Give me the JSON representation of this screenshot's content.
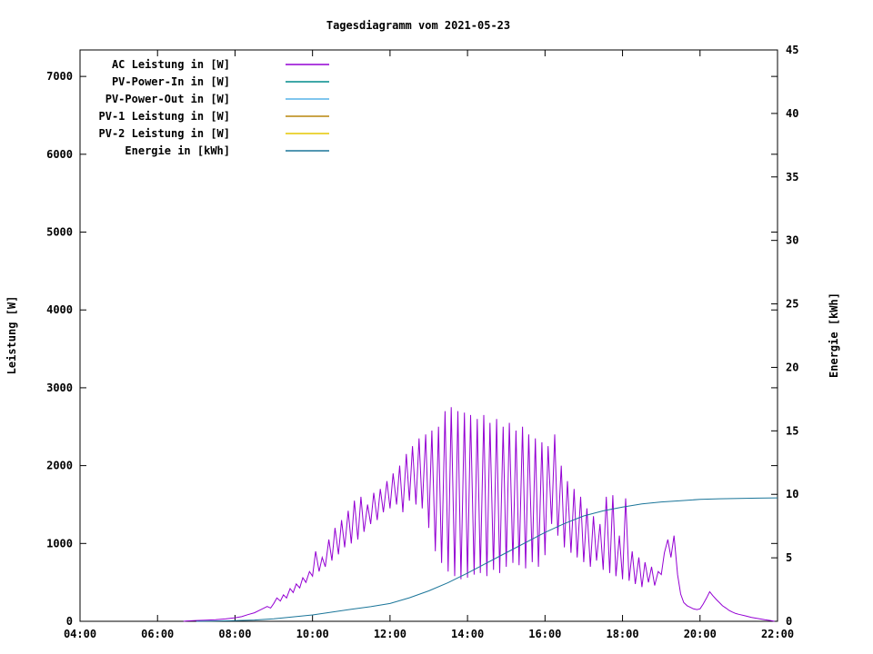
{
  "title": "Tagesdiagramm vom 2021-05-23",
  "axes": {
    "x": {
      "tick_labels": [
        "04:00",
        "06:00",
        "08:00",
        "10:00",
        "12:00",
        "14:00",
        "16:00",
        "18:00",
        "20:00",
        "22:00"
      ],
      "tick_hours": [
        4,
        6,
        8,
        10,
        12,
        14,
        16,
        18,
        20,
        22
      ],
      "range_hours": [
        4,
        22
      ]
    },
    "y_left": {
      "label": "Leistung [W]",
      "tick_values": [
        0,
        1000,
        2000,
        3000,
        4000,
        5000,
        6000,
        7000
      ],
      "tick_labels": [
        "0",
        "1000",
        "2000",
        "3000",
        "4000",
        "5000",
        "6000",
        "7000"
      ],
      "range": [
        0,
        7340
      ]
    },
    "y_right": {
      "label": "Energie [kWh]",
      "tick_values": [
        0,
        5,
        10,
        15,
        20,
        25,
        30,
        35,
        40,
        45
      ],
      "tick_labels": [
        "0",
        "5",
        "10",
        "15",
        "20",
        "25",
        "30",
        "35",
        "40",
        "45"
      ],
      "range": [
        0,
        45
      ]
    }
  },
  "legend": [
    {
      "label": "AC Leistung in [W]",
      "color": "#9400d3"
    },
    {
      "label": "PV-Power-In in [W]",
      "color": "#008b8b"
    },
    {
      "label": "PV-Power-Out in [W]",
      "color": "#56b4e9"
    },
    {
      "label": "PV-1 Leistung in [W]",
      "color": "#b8860b"
    },
    {
      "label": "PV-2 Leistung in [W]",
      "color": "#e6c700"
    },
    {
      "label": "Energie in [kWh]",
      "color": "#1a7599"
    }
  ],
  "chart_data": {
    "type": "line",
    "title": "Tagesdiagramm vom 2021-05-23",
    "xlabel": "",
    "x_unit": "hour of day",
    "ylabel_left": "Leistung [W]",
    "ylabel_right": "Energie [kWh]",
    "xlim_hours": [
      4,
      22
    ],
    "ylim_left": [
      0,
      7340
    ],
    "ylim_right": [
      0,
      45
    ],
    "grid": false,
    "legend_position": "top-left",
    "series": [
      {
        "name": "AC Leistung in [W]",
        "axis": "left",
        "color": "#9400d3",
        "visible": true,
        "points": [
          [
            6.67,
            0
          ],
          [
            6.75,
            5
          ],
          [
            7.0,
            10
          ],
          [
            7.25,
            15
          ],
          [
            7.5,
            20
          ],
          [
            7.75,
            30
          ],
          [
            8.0,
            45
          ],
          [
            8.17,
            60
          ],
          [
            8.33,
            85
          ],
          [
            8.5,
            110
          ],
          [
            8.67,
            150
          ],
          [
            8.83,
            190
          ],
          [
            8.92,
            170
          ],
          [
            9.0,
            230
          ],
          [
            9.08,
            300
          ],
          [
            9.17,
            260
          ],
          [
            9.25,
            340
          ],
          [
            9.33,
            300
          ],
          [
            9.42,
            420
          ],
          [
            9.5,
            370
          ],
          [
            9.58,
            480
          ],
          [
            9.67,
            430
          ],
          [
            9.75,
            560
          ],
          [
            9.83,
            500
          ],
          [
            9.92,
            640
          ],
          [
            10.0,
            580
          ],
          [
            10.08,
            900
          ],
          [
            10.17,
            640
          ],
          [
            10.25,
            820
          ],
          [
            10.33,
            700
          ],
          [
            10.42,
            1050
          ],
          [
            10.5,
            780
          ],
          [
            10.58,
            1200
          ],
          [
            10.67,
            860
          ],
          [
            10.75,
            1300
          ],
          [
            10.83,
            950
          ],
          [
            10.92,
            1420
          ],
          [
            11.0,
            1000
          ],
          [
            11.08,
            1550
          ],
          [
            11.17,
            1050
          ],
          [
            11.25,
            1600
          ],
          [
            11.33,
            1150
          ],
          [
            11.42,
            1500
          ],
          [
            11.5,
            1250
          ],
          [
            11.58,
            1650
          ],
          [
            11.67,
            1300
          ],
          [
            11.75,
            1700
          ],
          [
            11.83,
            1400
          ],
          [
            11.92,
            1800
          ],
          [
            12.0,
            1450
          ],
          [
            12.08,
            1900
          ],
          [
            12.17,
            1500
          ],
          [
            12.25,
            2000
          ],
          [
            12.33,
            1400
          ],
          [
            12.42,
            2150
          ],
          [
            12.5,
            1550
          ],
          [
            12.58,
            2250
          ],
          [
            12.67,
            1500
          ],
          [
            12.75,
            2350
          ],
          [
            12.83,
            1450
          ],
          [
            12.92,
            2400
          ],
          [
            13.0,
            1200
          ],
          [
            13.08,
            2450
          ],
          [
            13.17,
            900
          ],
          [
            13.25,
            2500
          ],
          [
            13.33,
            750
          ],
          [
            13.42,
            2700
          ],
          [
            13.5,
            640
          ],
          [
            13.58,
            2750
          ],
          [
            13.67,
            580
          ],
          [
            13.75,
            2700
          ],
          [
            13.83,
            540
          ],
          [
            13.92,
            2680
          ],
          [
            14.0,
            560
          ],
          [
            14.08,
            2650
          ],
          [
            14.17,
            600
          ],
          [
            14.25,
            2600
          ],
          [
            14.33,
            620
          ],
          [
            14.42,
            2650
          ],
          [
            14.5,
            580
          ],
          [
            14.58,
            2550
          ],
          [
            14.67,
            660
          ],
          [
            14.75,
            2600
          ],
          [
            14.83,
            620
          ],
          [
            14.92,
            2500
          ],
          [
            15.0,
            700
          ],
          [
            15.08,
            2550
          ],
          [
            15.17,
            750
          ],
          [
            15.25,
            2450
          ],
          [
            15.33,
            720
          ],
          [
            15.42,
            2500
          ],
          [
            15.5,
            680
          ],
          [
            15.58,
            2400
          ],
          [
            15.67,
            760
          ],
          [
            15.75,
            2350
          ],
          [
            15.83,
            700
          ],
          [
            15.92,
            2300
          ],
          [
            16.0,
            850
          ],
          [
            16.08,
            2250
          ],
          [
            16.17,
            1250
          ],
          [
            16.25,
            2400
          ],
          [
            16.33,
            1100
          ],
          [
            16.42,
            2000
          ],
          [
            16.5,
            950
          ],
          [
            16.58,
            1800
          ],
          [
            16.67,
            880
          ],
          [
            16.75,
            1700
          ],
          [
            16.83,
            820
          ],
          [
            16.92,
            1600
          ],
          [
            17.0,
            760
          ],
          [
            17.08,
            1450
          ],
          [
            17.17,
            700
          ],
          [
            17.25,
            1350
          ],
          [
            17.33,
            780
          ],
          [
            17.42,
            1250
          ],
          [
            17.5,
            660
          ],
          [
            17.58,
            1600
          ],
          [
            17.67,
            620
          ],
          [
            17.75,
            1620
          ],
          [
            17.83,
            580
          ],
          [
            17.92,
            1100
          ],
          [
            18.0,
            540
          ],
          [
            18.08,
            1580
          ],
          [
            18.17,
            520
          ],
          [
            18.25,
            900
          ],
          [
            18.33,
            480
          ],
          [
            18.42,
            820
          ],
          [
            18.5,
            440
          ],
          [
            18.58,
            760
          ],
          [
            18.67,
            500
          ],
          [
            18.75,
            700
          ],
          [
            18.83,
            460
          ],
          [
            18.92,
            640
          ],
          [
            19.0,
            600
          ],
          [
            19.08,
            880
          ],
          [
            19.17,
            1050
          ],
          [
            19.25,
            820
          ],
          [
            19.33,
            1100
          ],
          [
            19.42,
            600
          ],
          [
            19.5,
            350
          ],
          [
            19.58,
            240
          ],
          [
            19.67,
            200
          ],
          [
            19.75,
            180
          ],
          [
            19.83,
            160
          ],
          [
            19.92,
            150
          ],
          [
            20.0,
            160
          ],
          [
            20.08,
            220
          ],
          [
            20.17,
            300
          ],
          [
            20.25,
            380
          ],
          [
            20.33,
            330
          ],
          [
            20.42,
            280
          ],
          [
            20.5,
            240
          ],
          [
            20.58,
            200
          ],
          [
            20.67,
            170
          ],
          [
            20.75,
            140
          ],
          [
            20.83,
            120
          ],
          [
            20.92,
            100
          ],
          [
            21.0,
            90
          ],
          [
            21.17,
            70
          ],
          [
            21.33,
            50
          ],
          [
            21.5,
            35
          ],
          [
            21.67,
            20
          ],
          [
            21.83,
            8
          ],
          [
            21.92,
            0
          ]
        ]
      },
      {
        "name": "PV-Power-In in [W]",
        "axis": "left",
        "color": "#008b8b",
        "visible": false,
        "points": []
      },
      {
        "name": "PV-Power-Out in [W]",
        "axis": "left",
        "color": "#56b4e9",
        "visible": false,
        "points": []
      },
      {
        "name": "PV-1 Leistung in [W]",
        "axis": "left",
        "color": "#b8860b",
        "visible": false,
        "points": []
      },
      {
        "name": "PV-2 Leistung in [W]",
        "axis": "left",
        "color": "#e6c700",
        "visible": false,
        "points": []
      },
      {
        "name": "Energie in [kWh]",
        "axis": "right",
        "color": "#1a7599",
        "visible": true,
        "points": [
          [
            7.0,
            0
          ],
          [
            8.0,
            0.05
          ],
          [
            8.5,
            0.1
          ],
          [
            9.0,
            0.2
          ],
          [
            9.5,
            0.35
          ],
          [
            10.0,
            0.5
          ],
          [
            10.5,
            0.72
          ],
          [
            11.0,
            0.95
          ],
          [
            11.5,
            1.15
          ],
          [
            12.0,
            1.4
          ],
          [
            12.5,
            1.85
          ],
          [
            13.0,
            2.4
          ],
          [
            13.5,
            3.05
          ],
          [
            14.0,
            3.8
          ],
          [
            14.5,
            4.6
          ],
          [
            15.0,
            5.4
          ],
          [
            15.5,
            6.2
          ],
          [
            16.0,
            7.0
          ],
          [
            16.5,
            7.7
          ],
          [
            17.0,
            8.3
          ],
          [
            17.5,
            8.7
          ],
          [
            18.0,
            9.0
          ],
          [
            18.5,
            9.25
          ],
          [
            19.0,
            9.4
          ],
          [
            19.5,
            9.5
          ],
          [
            20.0,
            9.6
          ],
          [
            20.5,
            9.65
          ],
          [
            21.0,
            9.68
          ],
          [
            21.5,
            9.7
          ],
          [
            22.0,
            9.72
          ]
        ]
      }
    ]
  }
}
